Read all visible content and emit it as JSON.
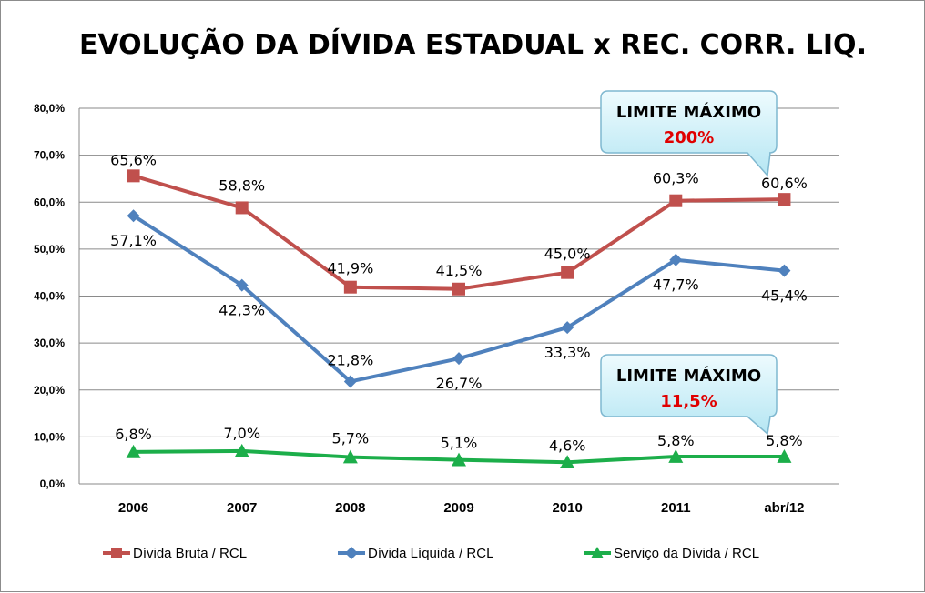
{
  "chart_data": {
    "type": "line",
    "title": "EVOLUÇÃO DA DÍVIDA ESTADUAL x REC. CORR. LIQ.",
    "categories": [
      "2006",
      "2007",
      "2008",
      "2009",
      "2010",
      "2011",
      "abr/12"
    ],
    "ylim": [
      0,
      80
    ],
    "yticks": [
      "0,0%",
      "10,0%",
      "20,0%",
      "30,0%",
      "40,0%",
      "50,0%",
      "60,0%",
      "70,0%",
      "80,0%"
    ],
    "grid": true,
    "legend_position": "bottom",
    "series": [
      {
        "name": "Dívida Bruta / RCL",
        "color": "#c0504d",
        "marker": "square",
        "values": [
          65.6,
          58.8,
          41.9,
          41.5,
          45.0,
          60.3,
          60.6
        ],
        "labels": [
          "65,6%",
          "58,8%",
          "41,9%",
          "41,5%",
          "45,0%",
          "60,3%",
          "60,6%"
        ]
      },
      {
        "name": "Dívida Líquida / RCL",
        "color": "#4f81bd",
        "marker": "diamond",
        "values": [
          57.1,
          42.3,
          21.8,
          26.7,
          33.3,
          47.7,
          45.4
        ],
        "labels": [
          "57,1%",
          "42,3%",
          "21,8%",
          "26,7%",
          "33,3%",
          "47,7%",
          "45,4%"
        ]
      },
      {
        "name": "Serviço da Dívida / RCL",
        "color": "#1cae4a",
        "marker": "triangle",
        "values": [
          6.8,
          7.0,
          5.7,
          5.1,
          4.6,
          5.8,
          5.8
        ],
        "labels": [
          "6,8%",
          "7,0%",
          "5,7%",
          "5,1%",
          "4,6%",
          "5,8%",
          "5,8%"
        ]
      }
    ],
    "annotations": [
      {
        "title": "LIMITE MÁXIMO",
        "value": "200%"
      },
      {
        "title": "LIMITE MÁXIMO",
        "value": "11,5%"
      }
    ]
  }
}
